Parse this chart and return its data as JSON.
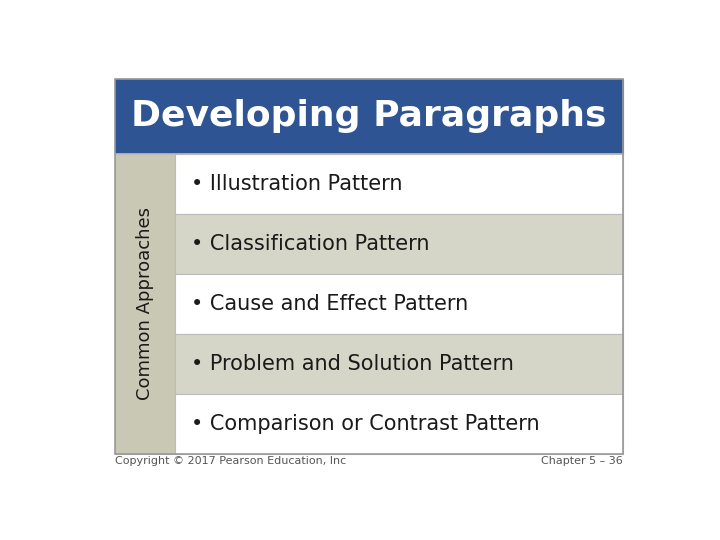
{
  "title": "Developing Paragraphs",
  "title_bg_color": "#2E5494",
  "title_text_color": "#FFFFFF",
  "sidebar_label": "Common Approaches",
  "sidebar_bg_color": "#C8C8B4",
  "sidebar_text_color": "#1a1a1a",
  "rows": [
    "• Illustration Pattern",
    "• Classification Pattern",
    "• Cause and Effect Pattern",
    "• Problem and Solution Pattern",
    "• Comparison or Contrast Pattern"
  ],
  "row_colors": [
    "#FFFFFF",
    "#D6D6C8",
    "#FFFFFF",
    "#D6D6C8",
    "#FFFFFF"
  ],
  "row_text_color": "#1a1a1a",
  "footer_left": "Copyright © 2017 Pearson Education, Inc",
  "footer_right": "Chapter 5 – 36",
  "bg_color": "#FFFFFF",
  "outer_border_color": "#999999",
  "grid_line_color": "#BBBBBB",
  "title_fontsize": 26,
  "row_fontsize": 15,
  "sidebar_fontsize": 13,
  "footer_fontsize": 8
}
